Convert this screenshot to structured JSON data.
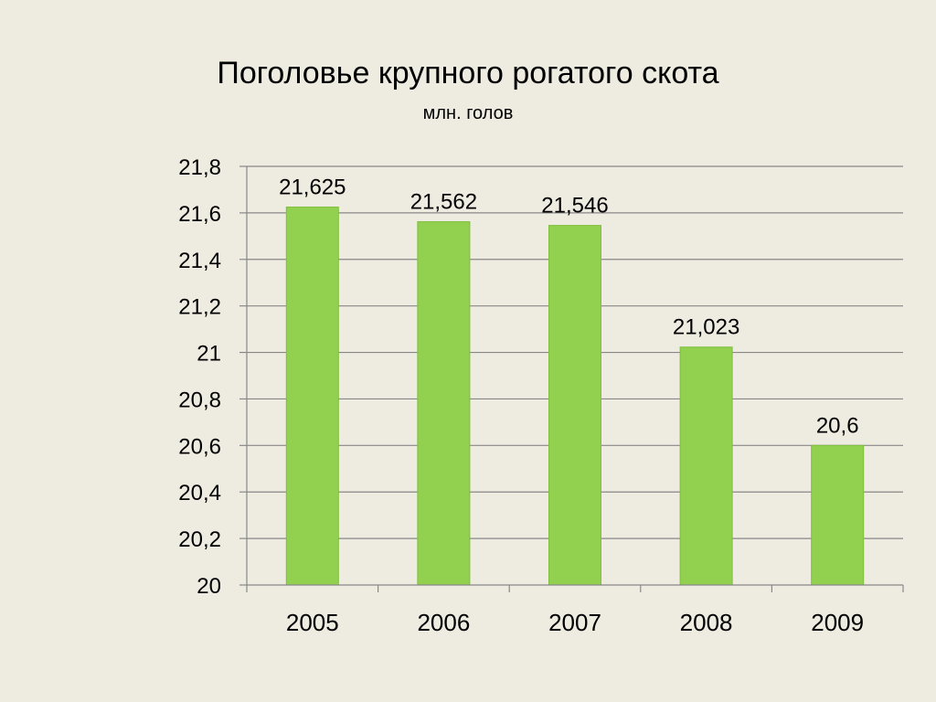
{
  "slide": {
    "title": "Поголовье крупного рогатого скота",
    "subtitle": "млн. голов"
  },
  "chart_data": {
    "type": "bar",
    "title": "Поголовье крупного рогатого скота",
    "subtitle": "млн. голов",
    "xlabel": "",
    "ylabel": "",
    "categories": [
      "2005",
      "2006",
      "2007",
      "2008",
      "2009"
    ],
    "values": [
      21.625,
      21.562,
      21.546,
      21.023,
      20.6
    ],
    "data_labels": [
      "21,625",
      "21,562",
      "21,546",
      "21,023",
      "20,6"
    ],
    "ylim": [
      20,
      21.8
    ],
    "yticks": [
      20,
      20.2,
      20.4,
      20.6,
      20.8,
      21,
      21.2,
      21.4,
      21.6,
      21.8
    ],
    "ytick_labels": [
      "20",
      "20,2",
      "20,4",
      "20,6",
      "20,8",
      "21",
      "21,2",
      "21,4",
      "21,6",
      "21,8"
    ],
    "grid": true,
    "legend": "none",
    "bar_color": "#92d050",
    "gridline_color": "#888888"
  }
}
